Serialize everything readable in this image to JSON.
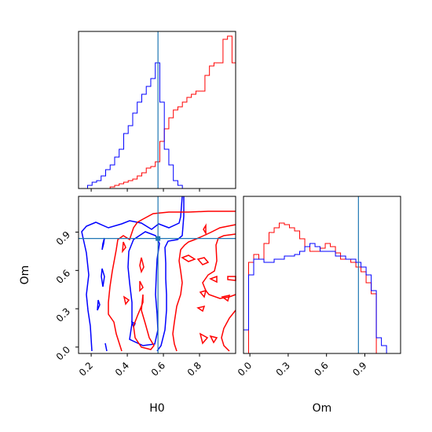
{
  "colors": {
    "red": "#ff0000",
    "blue": "#0000ff",
    "truth": "#1f77b4",
    "axis": "#000000"
  },
  "chart_data": [
    {
      "type": "histogram",
      "panel": "H0 marginal",
      "xlim": [
        0.13,
        1.0
      ],
      "xticks": [
        0.2,
        0.4,
        0.6,
        0.8
      ],
      "truth": 0.57,
      "bins": [
        0.13,
        0.155,
        0.18,
        0.205,
        0.23,
        0.255,
        0.28,
        0.305,
        0.33,
        0.355,
        0.38,
        0.405,
        0.43,
        0.455,
        0.48,
        0.505,
        0.53,
        0.555,
        0.58,
        0.605,
        0.63,
        0.655,
        0.68,
        0.705,
        0.73,
        0.755,
        0.78,
        0.805,
        0.83,
        0.855,
        0.88,
        0.905,
        0.93,
        0.955,
        0.98,
        1.0
      ],
      "series": [
        {
          "color": "red",
          "values": [
            0,
            0,
            0,
            0,
            0,
            0,
            0,
            0.01,
            0.02,
            0.03,
            0.04,
            0.05,
            0.06,
            0.08,
            0.1,
            0.13,
            0.14,
            0.17,
            0.3,
            0.38,
            0.45,
            0.5,
            0.52,
            0.55,
            0.58,
            0.6,
            0.62,
            0.62,
            0.72,
            0.78,
            0.8,
            0.8,
            0.95,
            0.97,
            0.8
          ]
        },
        {
          "color": "blue",
          "values": [
            0,
            0,
            0.02,
            0.04,
            0.05,
            0.08,
            0.12,
            0.15,
            0.2,
            0.25,
            0.35,
            0.4,
            0.48,
            0.55,
            0.6,
            0.65,
            0.7,
            0.8,
            0.55,
            0.25,
            0.15,
            0.05,
            0.02,
            0,
            0,
            0,
            0,
            0,
            0,
            0,
            0,
            0,
            0,
            0,
            0
          ]
        }
      ]
    },
    {
      "type": "contour",
      "panel": "H0 vs Om",
      "xlim": [
        0.13,
        1.0
      ],
      "ylim": [
        -0.05,
        1.18
      ],
      "xticks": [
        0.2,
        0.4,
        0.6,
        0.8
      ],
      "yticks": [
        0.0,
        0.3,
        0.6,
        0.9
      ],
      "xlabel": "H0",
      "ylabel": "Om",
      "truth": {
        "x": 0.57,
        "y": 0.85
      }
    },
    {
      "type": "histogram",
      "panel": "Om marginal",
      "xlim": [
        -0.05,
        1.18
      ],
      "xticks": [
        0.0,
        0.3,
        0.6,
        0.9
      ],
      "xlabel": "Om",
      "truth": 0.85,
      "bins": [
        -0.05,
        -0.01,
        0.03,
        0.07,
        0.11,
        0.15,
        0.19,
        0.23,
        0.27,
        0.31,
        0.35,
        0.39,
        0.43,
        0.47,
        0.51,
        0.55,
        0.59,
        0.63,
        0.67,
        0.71,
        0.75,
        0.79,
        0.83,
        0.87,
        0.91,
        0.95,
        0.99,
        1.03,
        1.07,
        1.11,
        1.18
      ],
      "series": [
        {
          "color": "red",
          "values": [
            0,
            0.58,
            0.63,
            0.6,
            0.7,
            0.77,
            0.8,
            0.83,
            0.82,
            0.8,
            0.78,
            0.73,
            0.68,
            0.65,
            0.65,
            0.67,
            0.7,
            0.68,
            0.64,
            0.6,
            0.6,
            0.58,
            0.55,
            0.52,
            0.45,
            0.38,
            0,
            0,
            0,
            0
          ]
        },
        {
          "color": "blue",
          "values": [
            0.15,
            0.5,
            0.6,
            0.6,
            0.58,
            0.58,
            0.6,
            0.6,
            0.62,
            0.62,
            0.63,
            0.65,
            0.68,
            0.7,
            0.68,
            0.65,
            0.65,
            0.65,
            0.62,
            0.62,
            0.6,
            0.6,
            0.58,
            0.55,
            0.5,
            0.4,
            0.1,
            0.05,
            0,
            0
          ]
        }
      ]
    }
  ]
}
